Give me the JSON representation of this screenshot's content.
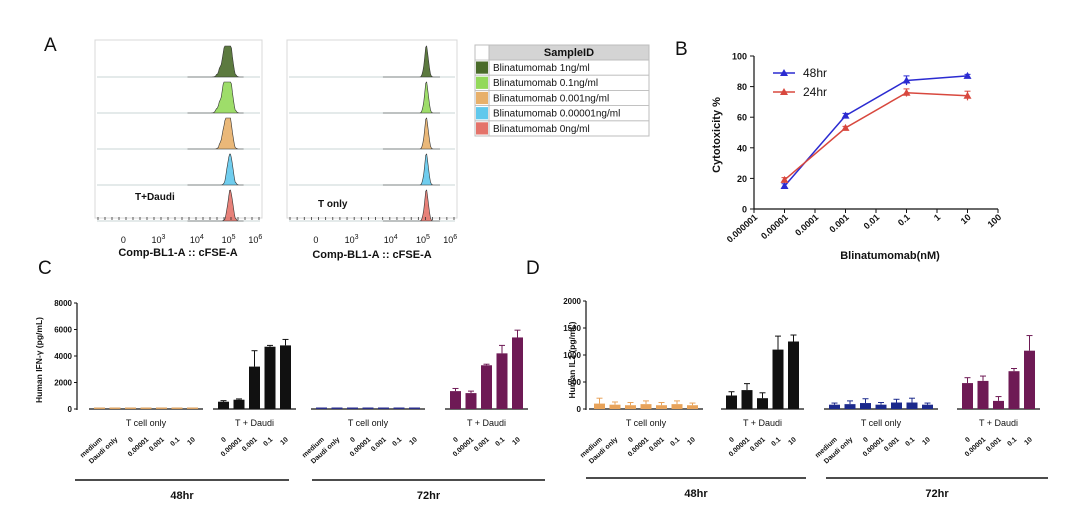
{
  "figure": {
    "panel_labels": [
      "A",
      "B",
      "C",
      "D"
    ]
  },
  "chart_data": [
    {
      "type": "area",
      "panel": "A",
      "panels": [
        {
          "annotation": "T+Daudi",
          "xlabel": "Comp-BL1-A :: cFSE-A"
        },
        {
          "annotation": "T only",
          "xlabel": "Comp-BL1-A :: cFSE-A"
        }
      ],
      "xticks": [
        "0",
        "10",
        "10",
        "10",
        "10"
      ],
      "xtick_exponents": [
        "",
        "3",
        "4",
        "5",
        "6"
      ],
      "legend_title": "SampleID",
      "series": [
        {
          "name": "Blinatumomab 1ng/ml",
          "color": "#4a6b2a"
        },
        {
          "name": "Blinatumomab 0.1ng/ml",
          "color": "#93d95a"
        },
        {
          "name": "Blinatumomab 0.001ng/ml",
          "color": "#e8b06a"
        },
        {
          "name": "Blinatumomab 0.00001ng/ml",
          "color": "#60c8ec"
        },
        {
          "name": "Blinatumomab 0ng/ml",
          "color": "#e4736a"
        }
      ]
    },
    {
      "type": "line",
      "panel": "B",
      "xlabel": "Blinatumomab(nM)",
      "ylabel": "Cytotoxicity %",
      "xscale": "log",
      "xticks": [
        "0.000001",
        "0.00001",
        "0.0001",
        "0.001",
        "0.01",
        "0.1",
        "1",
        "10",
        "100"
      ],
      "yticks": [
        "0",
        "20",
        "40",
        "60",
        "80",
        "100"
      ],
      "ylim": [
        0,
        100
      ],
      "legend_position": "top-left",
      "x": [
        1e-05,
        0.001,
        0.1,
        10
      ],
      "series": [
        {
          "name": "48hr",
          "color": "#2b2bd1",
          "marker": "triangle",
          "values": [
            15,
            61,
            84,
            87
          ],
          "errors": [
            1.5,
            1.5,
            3,
            1
          ]
        },
        {
          "name": "24hr",
          "color": "#d8483e",
          "marker": "triangle",
          "values": [
            19,
            53,
            76,
            74
          ],
          "errors": [
            1.5,
            1,
            2.5,
            3
          ]
        }
      ]
    },
    {
      "type": "bar",
      "panel": "C",
      "ylabel": "Human IFN-γ (pg/mL)",
      "ylim": [
        0,
        8000
      ],
      "yticks": [
        "0",
        "2000",
        "4000",
        "6000",
        "8000"
      ],
      "timepoints": [
        "48hr",
        "72hr"
      ],
      "bar_colors": [
        "#d9a060",
        "#111111",
        "#2a2f8a",
        "#6e1a55"
      ],
      "groups": [
        {
          "label": "T cell only",
          "time": "48hr",
          "categories": [
            "medium",
            "Daudi only",
            "0",
            "0.00001",
            "0.001",
            "0.1",
            "10"
          ],
          "values": [
            20,
            20,
            20,
            20,
            20,
            20,
            20
          ],
          "errors": [
            20,
            20,
            20,
            20,
            20,
            20,
            20
          ]
        },
        {
          "label": "T + Daudi",
          "time": "48hr",
          "categories": [
            "0",
            "0.00001",
            "0.001",
            "0.1",
            "10"
          ],
          "values": [
            550,
            700,
            3200,
            4700,
            4800
          ],
          "errors": [
            80,
            60,
            1200,
            100,
            450
          ]
        },
        {
          "label": "T cell only",
          "time": "72hr",
          "categories": [
            "medium",
            "Daudi only",
            "0",
            "0.00001",
            "0.001",
            "0.1",
            "10"
          ],
          "values": [
            30,
            30,
            30,
            30,
            30,
            30,
            30
          ],
          "errors": [
            20,
            20,
            20,
            20,
            20,
            20,
            20
          ]
        },
        {
          "label": "T + Daudi",
          "time": "72hr",
          "categories": [
            "0",
            "0.00001",
            "0.001",
            "0.1",
            "10"
          ],
          "values": [
            1350,
            1200,
            3300,
            4200,
            5400
          ],
          "errors": [
            200,
            150,
            80,
            600,
            550
          ]
        }
      ]
    },
    {
      "type": "bar",
      "panel": "D",
      "ylabel": "Human IL2 (pg/mL)",
      "ylim": [
        0,
        2000
      ],
      "yticks": [
        "0",
        "500",
        "1000",
        "1500",
        "2000"
      ],
      "timepoints": [
        "48hr",
        "72hr"
      ],
      "bar_colors": [
        "#e8a35a",
        "#111111",
        "#1c2a8c",
        "#6e1a55"
      ],
      "groups": [
        {
          "label": "T cell only",
          "time": "48hr",
          "categories": [
            "medium",
            "Daudi only",
            "0",
            "0.00001",
            "0.001",
            "0.1",
            "10"
          ],
          "values": [
            100,
            80,
            70,
            90,
            70,
            90,
            70
          ],
          "errors": [
            100,
            50,
            50,
            60,
            50,
            60,
            40
          ]
        },
        {
          "label": "T + Daudi",
          "time": "48hr",
          "categories": [
            "0",
            "0.00001",
            "0.001",
            "0.1",
            "10"
          ],
          "values": [
            250,
            350,
            200,
            1100,
            1250
          ],
          "errors": [
            70,
            120,
            100,
            250,
            120
          ]
        },
        {
          "label": "T cell only",
          "time": "72hr",
          "categories": [
            "medium",
            "Daudi only",
            "0",
            "0.00001",
            "0.001",
            "0.1",
            "10"
          ],
          "values": [
            80,
            90,
            110,
            80,
            120,
            120,
            80
          ],
          "errors": [
            30,
            60,
            80,
            40,
            60,
            80,
            30
          ]
        },
        {
          "label": "T + Daudi",
          "time": "72hr",
          "categories": [
            "0",
            "0.00001",
            "0.001",
            "0.1",
            "10"
          ],
          "values": [
            480,
            520,
            150,
            700,
            1080
          ],
          "errors": [
            100,
            90,
            80,
            50,
            280
          ]
        }
      ]
    }
  ]
}
